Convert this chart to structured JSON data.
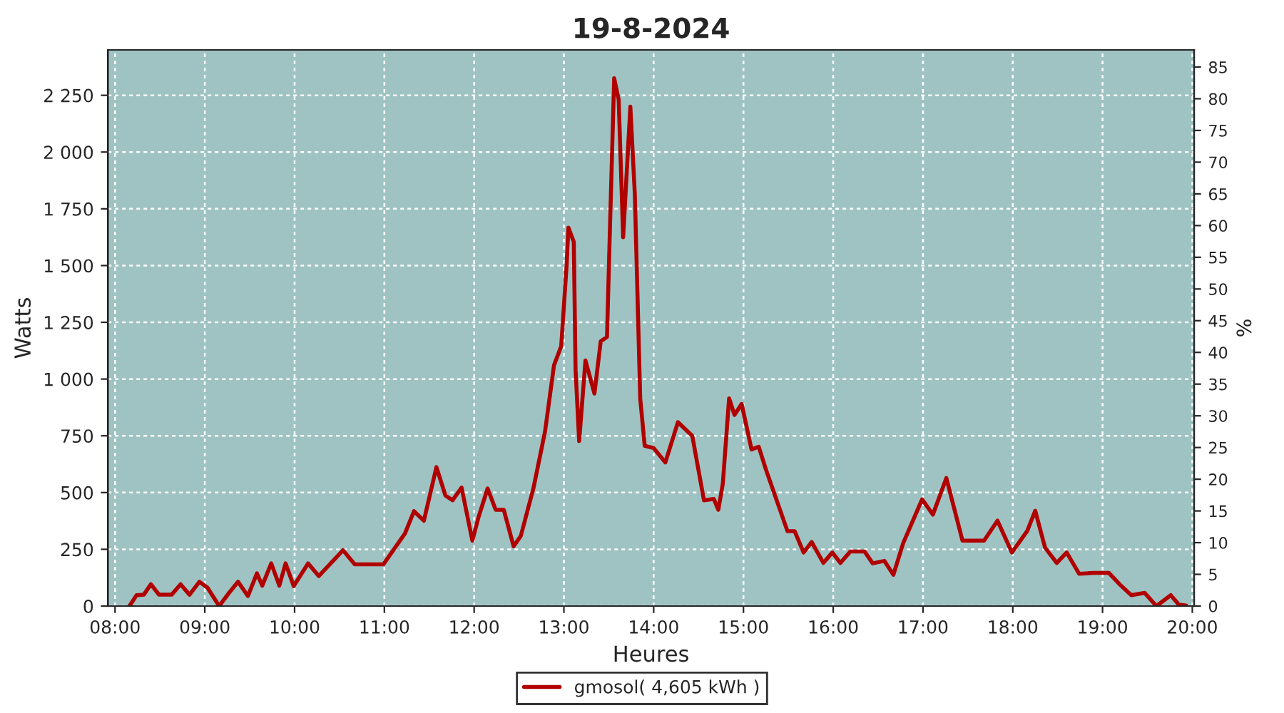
{
  "chart_data": {
    "type": "line",
    "title": "19-8-2024",
    "xlabel": "Heures",
    "ylabel": "Watts",
    "y2label": "%",
    "xlim": [
      7.92,
      20.02
    ],
    "xticks": [
      {
        "value": 8,
        "label": "08:00"
      },
      {
        "value": 9,
        "label": "09:00"
      },
      {
        "value": 10,
        "label": "10:00"
      },
      {
        "value": 11,
        "label": "11:00"
      },
      {
        "value": 12,
        "label": "12:00"
      },
      {
        "value": 13,
        "label": "13:00"
      },
      {
        "value": 14,
        "label": "14:00"
      },
      {
        "value": 15,
        "label": "15:00"
      },
      {
        "value": 16,
        "label": "16:00"
      },
      {
        "value": 17,
        "label": "17:00"
      },
      {
        "value": 18,
        "label": "18:00"
      },
      {
        "value": 19,
        "label": "19:00"
      },
      {
        "value": 20,
        "label": "20:00"
      }
    ],
    "ylim": [
      0,
      2450
    ],
    "yticks": [
      0,
      250,
      500,
      750,
      {
        "value": 1000,
        "label": "1 000"
      },
      {
        "value": 1250,
        "label": "1 250"
      },
      {
        "value": 1500,
        "label": "1 500"
      },
      {
        "value": 1750,
        "label": "1 750"
      },
      {
        "value": 2000,
        "label": "2 000"
      },
      {
        "value": 2250,
        "label": "2 250"
      }
    ],
    "y2lim": [
      0,
      87.7
    ],
    "y2ticks": [
      0,
      5,
      10,
      15,
      20,
      25,
      30,
      35,
      40,
      45,
      50,
      55,
      60,
      65,
      70,
      75,
      80,
      85
    ],
    "grid": true,
    "legend": "bottom",
    "series": [
      {
        "name": "gmosol( 4,605 kWh )",
        "color": "#b00000",
        "x": [
          8.16,
          8.24,
          8.32,
          8.4,
          8.49,
          8.63,
          8.73,
          8.83,
          8.94,
          9.03,
          9.16,
          9.27,
          9.37,
          9.48,
          9.58,
          9.64,
          9.74,
          9.83,
          9.9,
          9.99,
          10.15,
          10.27,
          10.54,
          10.67,
          10.99,
          11.23,
          11.33,
          11.44,
          11.58,
          11.68,
          11.76,
          11.86,
          11.98,
          12.05,
          12.15,
          12.24,
          12.33,
          12.44,
          12.52,
          12.66,
          12.79,
          12.89,
          12.97,
          13.03,
          13.05,
          13.11,
          13.13,
          13.17,
          13.24,
          13.34,
          13.41,
          13.48,
          13.51,
          13.56,
          13.61,
          13.66,
          13.74,
          13.79,
          13.85,
          13.9,
          14.0,
          14.13,
          14.27,
          14.43,
          14.56,
          14.67,
          14.72,
          14.77,
          14.84,
          14.9,
          14.98,
          15.09,
          15.17,
          15.25,
          15.49,
          15.57,
          15.67,
          15.76,
          15.89,
          15.99,
          16.08,
          16.19,
          16.35,
          16.44,
          16.57,
          16.67,
          16.78,
          16.99,
          17.11,
          17.26,
          17.44,
          17.68,
          17.83,
          17.99,
          18.16,
          18.25,
          18.36,
          18.49,
          18.6,
          18.74,
          18.9,
          19.07,
          19.19,
          19.32,
          19.47,
          19.6,
          19.76,
          19.85,
          19.93
        ],
        "values": [
          0,
          48,
          50,
          96,
          50,
          50,
          96,
          50,
          107,
          81,
          0,
          58,
          107,
          44,
          144,
          90,
          188,
          90,
          188,
          88,
          188,
          132,
          246,
          184,
          184,
          320,
          418,
          376,
          612,
          487,
          466,
          522,
          288,
          393,
          518,
          424,
          424,
          263,
          309,
          518,
          769,
          1061,
          1145,
          1500,
          1667,
          1604,
          1040,
          727,
          1082,
          936,
          1166,
          1186,
          1625,
          2325,
          2231,
          1625,
          2200,
          1813,
          915,
          706,
          696,
          633,
          810,
          750,
          466,
          472,
          424,
          539,
          915,
          842,
          890,
          690,
          702,
          602,
          330,
          330,
          236,
          282,
          190,
          236,
          190,
          240,
          240,
          188,
          199,
          138,
          278,
          470,
          403,
          564,
          288,
          288,
          376,
          236,
          330,
          420,
          257,
          190,
          236,
          142,
          146,
          146,
          96,
          48,
          58,
          0,
          48,
          6,
          2
        ]
      }
    ]
  }
}
